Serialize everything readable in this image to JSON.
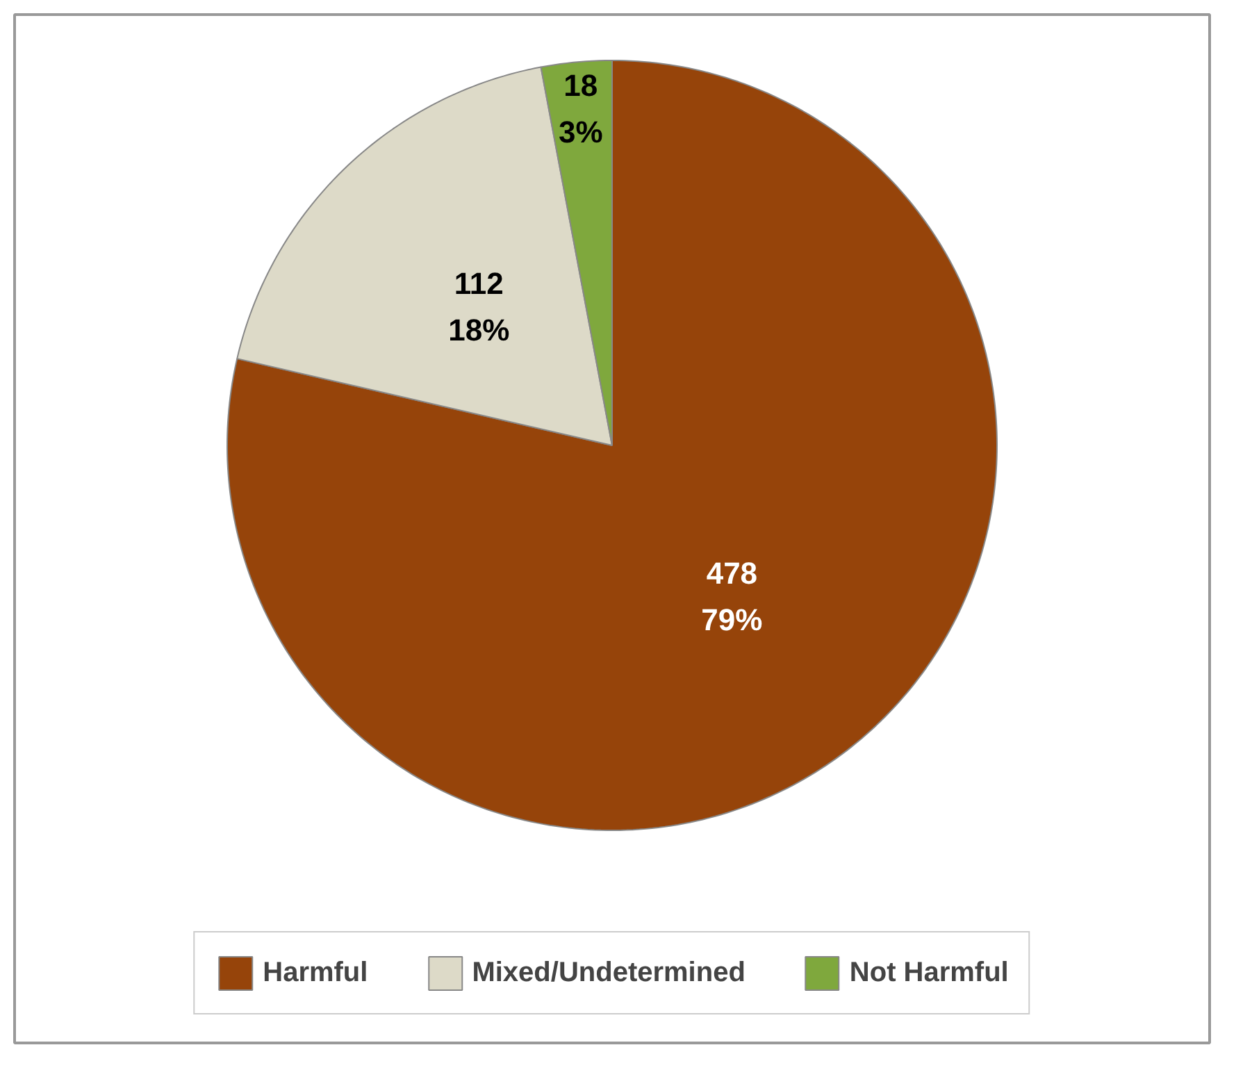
{
  "chart_data": {
    "type": "pie",
    "categories": [
      "Harmful",
      "Mixed/Undetermined",
      "Not Harmful"
    ],
    "values": [
      478,
      112,
      18
    ],
    "colors": [
      "#96440a",
      "#dddac8",
      "#7fa83d"
    ],
    "value_labels": [
      "478\n79%",
      "112\n18%",
      "18\n3%"
    ],
    "legend": "bottom"
  }
}
